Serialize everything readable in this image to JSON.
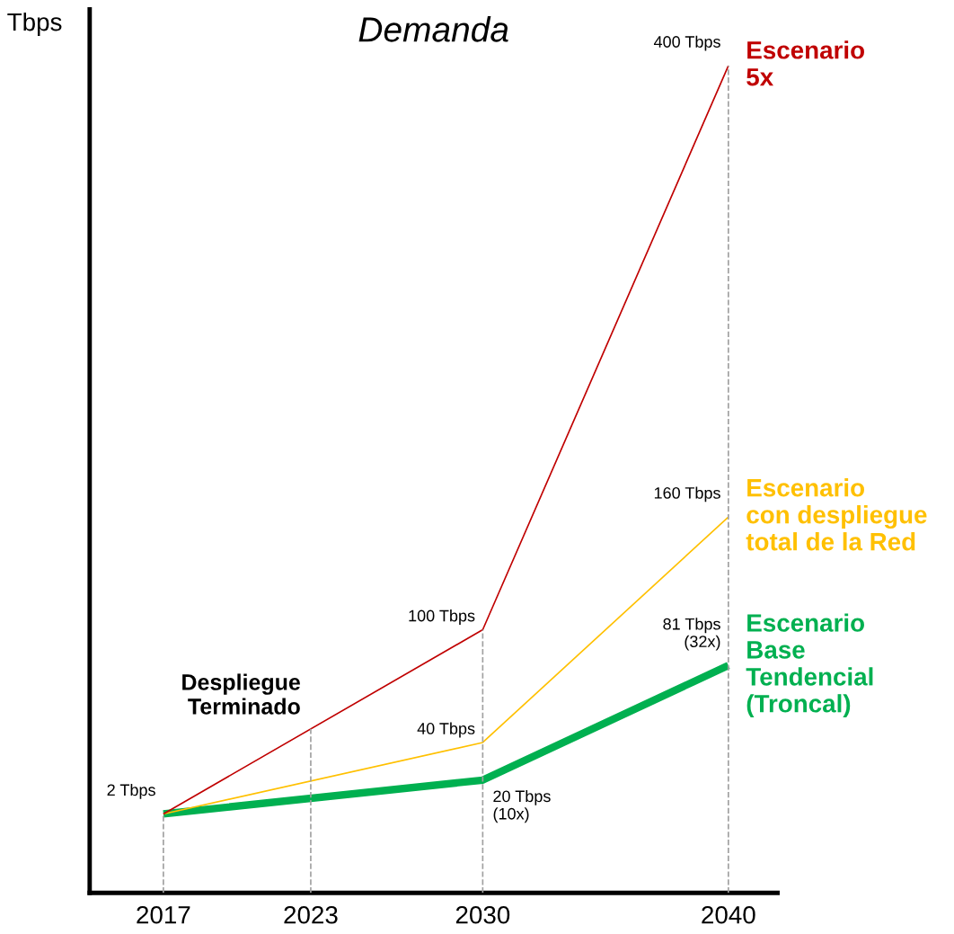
{
  "chart_data": {
    "type": "line",
    "title": "Demanda",
    "ylabel": "Tbps",
    "xlim": [
      2014,
      2042
    ],
    "xticks": [
      2017,
      2023,
      2030,
      2040
    ],
    "ylim": [
      -40,
      430
    ],
    "tick_labels": "x",
    "series": [
      {
        "name": "Escenario\n5x",
        "color": "#c00000",
        "x": [
          2017,
          2030,
          2040
        ],
        "values": [
          2,
          100,
          400
        ],
        "value_labels": [
          null,
          "100 Tbps",
          "400 Tbps"
        ]
      },
      {
        "name": "Escenario\ncon despliegue\ntotal de la Red",
        "color": "#ffc000",
        "x": [
          2017,
          2030,
          2040
        ],
        "values": [
          2,
          40,
          160
        ],
        "value_labels": [
          null,
          "40 Tbps",
          "160 Tbps"
        ]
      },
      {
        "name": "Escenario\nBase\nTendencial\n(Troncal)",
        "color": "#00b050",
        "x": [
          2017,
          2030,
          2040
        ],
        "values": [
          2,
          20,
          81
        ],
        "value_labels": [
          "2 Tbps",
          "20 Tbps\n(10x)",
          "81 Tbps\n(32x)"
        ]
      }
    ],
    "ref_lines": [
      {
        "axis": "x",
        "value": 2017,
        "color": "#a0a0a0",
        "line_style": "dashed"
      },
      {
        "axis": "x",
        "value": 2023,
        "color": "#a0a0a0",
        "line_style": "dashed",
        "label": "Despliegue\nTerminado"
      },
      {
        "axis": "x",
        "value": 2030,
        "color": "#a0a0a0",
        "line_style": "dashed"
      },
      {
        "axis": "x",
        "value": 2040,
        "color": "#a0a0a0",
        "line_style": "dashed"
      }
    ],
    "grid": false,
    "legend": false
  }
}
